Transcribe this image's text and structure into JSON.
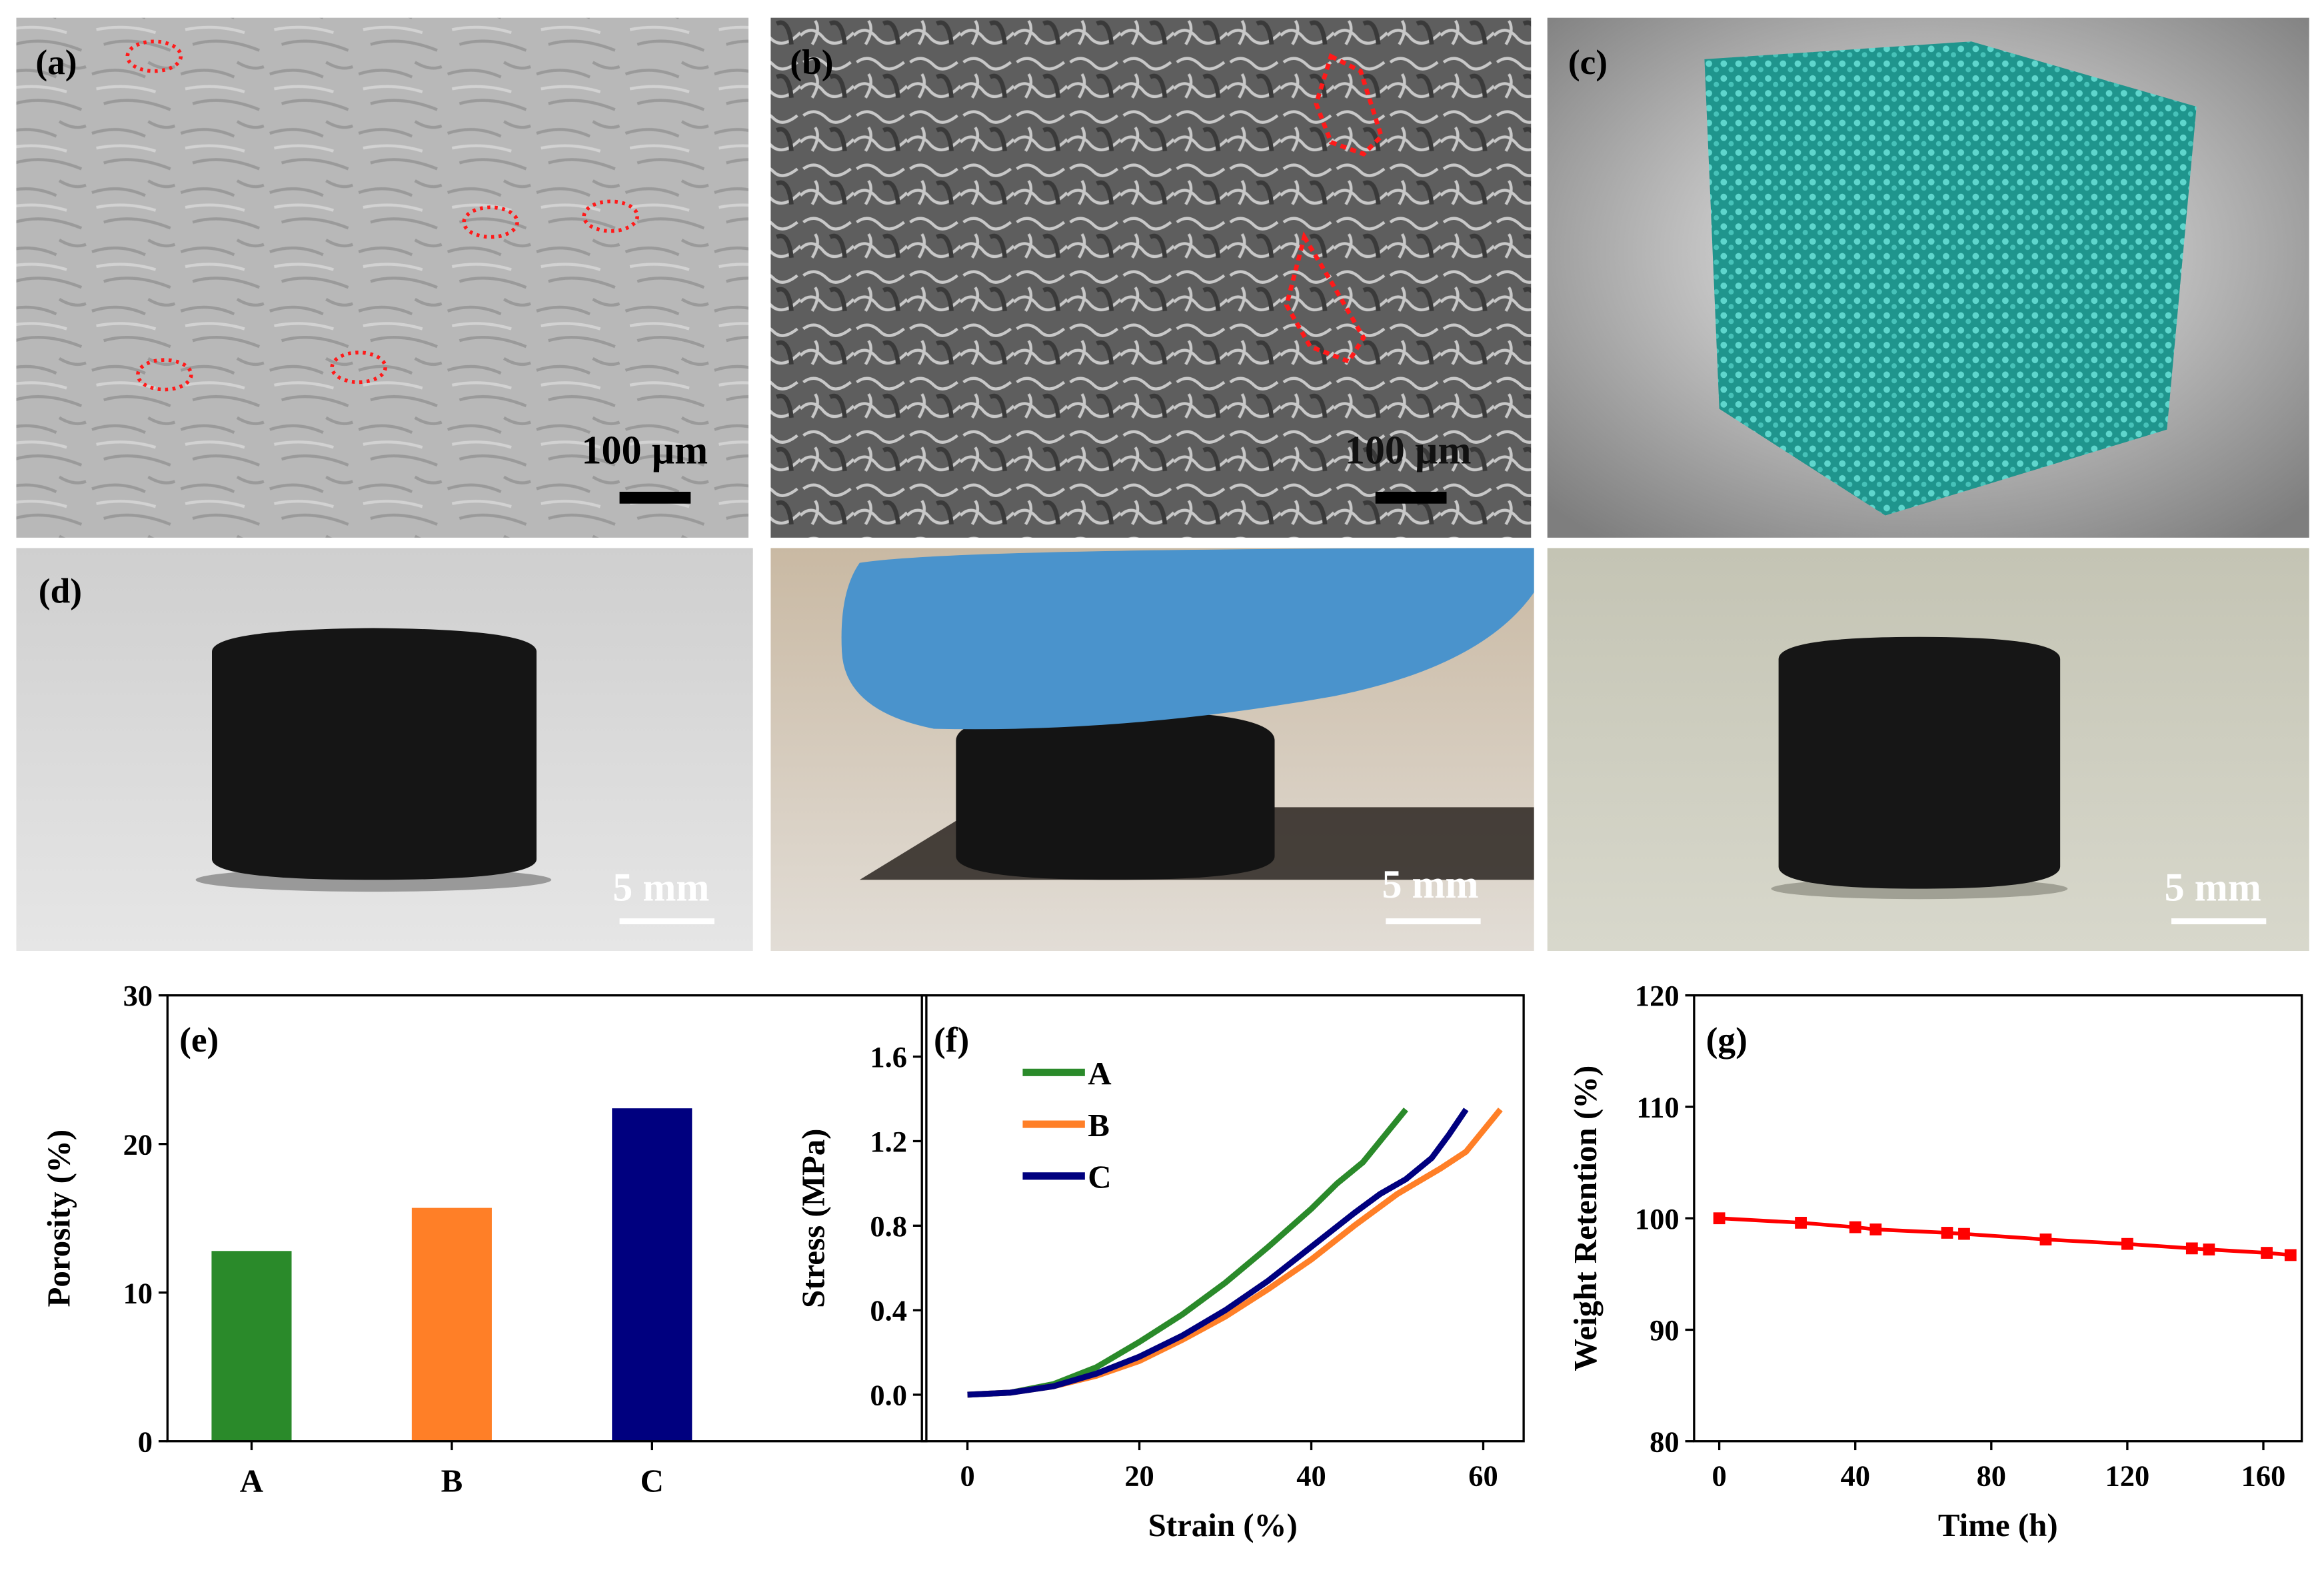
{
  "images": {
    "a": {
      "label": "(a)",
      "scale": "100 µm"
    },
    "b": {
      "label": "(b)",
      "scale": "100 µm"
    },
    "c": {
      "label": "(c)"
    },
    "d": {
      "label": "(d)",
      "scales": [
        "5 mm",
        "5 mm",
        "5 mm"
      ]
    }
  },
  "chart_data": [
    {
      "type": "bar",
      "annotation": "(e)",
      "y_label": "Porosity (%)",
      "categories": [
        "A",
        "B",
        "C"
      ],
      "values": [
        12.8,
        15.7,
        22.4
      ],
      "colors": [
        "#2a8a2a",
        "#ff7f27",
        "#00007f"
      ],
      "ylim": [
        0,
        30
      ],
      "yticks": [
        0,
        10,
        20,
        30
      ]
    },
    {
      "type": "line",
      "annotation": "(f)",
      "x_label": "Strain (%)",
      "y_label": "Stress (MPa)",
      "xlim": [
        -5.3,
        64.7
      ],
      "xticks": [
        0,
        20,
        40,
        60
      ],
      "ylim": [
        -0.22,
        1.89
      ],
      "yticks": [
        {
          "value": 0,
          "label": "0.0"
        },
        0.4,
        0.8,
        1.2,
        1.6
      ],
      "legend": "upper-left",
      "series": [
        {
          "name": "A",
          "color": "#2a8a2a",
          "x": [
            0,
            5,
            10,
            15,
            20,
            25,
            30,
            35,
            40,
            43,
            46,
            49,
            51
          ],
          "values": [
            0,
            0.01,
            0.05,
            0.13,
            0.25,
            0.38,
            0.53,
            0.7,
            0.88,
            1.0,
            1.1,
            1.25,
            1.35
          ]
        },
        {
          "name": "B",
          "color": "#ff7f27",
          "x": [
            0,
            5,
            10,
            15,
            20,
            25,
            30,
            35,
            40,
            45,
            50,
            55,
            58,
            60,
            62
          ],
          "values": [
            0,
            0.01,
            0.04,
            0.09,
            0.16,
            0.26,
            0.37,
            0.5,
            0.64,
            0.8,
            0.95,
            1.07,
            1.15,
            1.25,
            1.35
          ]
        },
        {
          "name": "C",
          "color": "#00007f",
          "x": [
            0,
            5,
            10,
            15,
            20,
            25,
            30,
            35,
            40,
            45,
            48,
            51,
            54,
            56,
            58
          ],
          "values": [
            0,
            0.01,
            0.04,
            0.1,
            0.18,
            0.28,
            0.4,
            0.54,
            0.7,
            0.86,
            0.95,
            1.02,
            1.12,
            1.23,
            1.35
          ]
        }
      ]
    },
    {
      "type": "line",
      "annotation": "(g)",
      "x_label": "Time (h)",
      "y_label": "Weight Retention (%)",
      "xlim": [
        -7.4,
        171.3
      ],
      "xticks": [
        0,
        40,
        80,
        120,
        160
      ],
      "ylim": [
        80,
        120
      ],
      "yticks": [
        80,
        90,
        100,
        110,
        120
      ],
      "marker": "square",
      "x": [
        0,
        24,
        40,
        46,
        67,
        72,
        96,
        120,
        139,
        144,
        161,
        168
      ],
      "series": [
        {
          "color": "#ff0000",
          "values": [
            100,
            99.6,
            99.2,
            99.0,
            98.7,
            98.6,
            98.1,
            97.7,
            97.3,
            97.2,
            96.9,
            96.7
          ]
        }
      ]
    }
  ]
}
